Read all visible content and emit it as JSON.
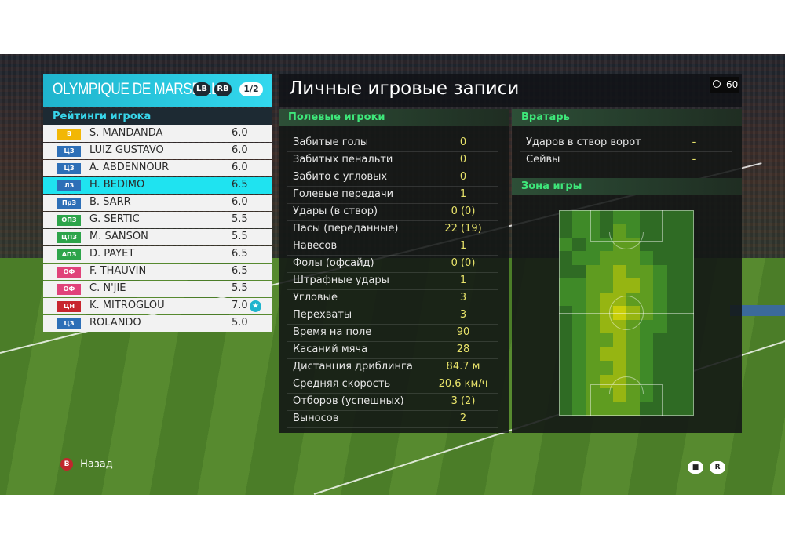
{
  "team": {
    "name": "OLYMPIQUE DE MARSEILLE",
    "lb": "LB",
    "rb": "RB",
    "page": "1/2"
  },
  "ratings_title": "Рейтинги игрока",
  "players": [
    {
      "pos": "В",
      "pos_color": "#f2b705",
      "name": "S. MANDANDA",
      "rating": "6.0"
    },
    {
      "pos": "ЦЗ",
      "pos_color": "#2d6fb7",
      "name": "LUIZ GUSTAVO",
      "rating": "6.0"
    },
    {
      "pos": "ЦЗ",
      "pos_color": "#2d6fb7",
      "name": "A. ABDENNOUR",
      "rating": "6.0"
    },
    {
      "pos": "ЛЗ",
      "pos_color": "#2d6fb7",
      "name": "H. BEDIMO",
      "rating": "6.5",
      "selected": true
    },
    {
      "pos": "ПрЗ",
      "pos_color": "#2d6fb7",
      "name": "B. SARR",
      "rating": "6.0"
    },
    {
      "pos": "ОПЗ",
      "pos_color": "#2da44a",
      "name": "G. SERTIC",
      "rating": "5.5"
    },
    {
      "pos": "ЦПЗ",
      "pos_color": "#2da44a",
      "name": "M. SANSON",
      "rating": "5.5"
    },
    {
      "pos": "АПЗ",
      "pos_color": "#2da44a",
      "name": "D. PAYET",
      "rating": "6.5"
    },
    {
      "pos": "ОФ",
      "pos_color": "#e0427a",
      "name": "F. THAUVIN",
      "rating": "6.5"
    },
    {
      "pos": "ОФ",
      "pos_color": "#e0427a",
      "name": "C. N'JIE",
      "rating": "5.5"
    },
    {
      "pos": "ЦН",
      "pos_color": "#c8252e",
      "name": "K. MITROGLOU",
      "rating": "7.0",
      "star": true
    },
    {
      "pos": "ЦЗ",
      "pos_color": "#2d6fb7",
      "name": "ROLANDO",
      "rating": "5.0"
    }
  ],
  "title": "Личные игровые записи",
  "timer": "60",
  "field_players": {
    "heading": "Полевые игроки",
    "stats": [
      {
        "label": "Забитые голы",
        "value": "0"
      },
      {
        "label": "Забитых пенальти",
        "value": "0"
      },
      {
        "label": "Забито с угловых",
        "value": "0"
      },
      {
        "label": "Голевые передачи",
        "value": "1"
      },
      {
        "label": "Удары (в створ)",
        "value": "0 (0)"
      },
      {
        "label": "Пасы (переданные)",
        "value": "22 (19)"
      },
      {
        "label": "Навесов",
        "value": "1"
      },
      {
        "label": "Фолы (офсайд)",
        "value": "0 (0)"
      },
      {
        "label": "Штрафные удары",
        "value": "1"
      },
      {
        "label": "Угловые",
        "value": "3"
      },
      {
        "label": "Перехваты",
        "value": "3"
      },
      {
        "label": "Время на поле",
        "value": "90"
      },
      {
        "label": "Касаний мяча",
        "value": "28"
      },
      {
        "label": "Дистанция дриблинга",
        "value": "84.7 м"
      },
      {
        "label": "Средняя скорость",
        "value": "20.6 км/ч"
      },
      {
        "label": "Отборов (успешных)",
        "value": "3 (2)"
      },
      {
        "label": "Выносов",
        "value": "2"
      }
    ]
  },
  "goalkeeper": {
    "heading": "Вратарь",
    "stats": [
      {
        "label": "Ударов в створ ворот",
        "value": "-"
      },
      {
        "label": "Сейвы",
        "value": "-"
      }
    ]
  },
  "zone": {
    "heading": "Зона игры",
    "heatmap": [
      [
        0,
        1,
        1,
        0,
        1,
        1,
        0,
        0,
        0,
        0
      ],
      [
        0,
        1,
        1,
        0,
        2,
        1,
        0,
        0,
        0,
        0
      ],
      [
        1,
        0,
        1,
        1,
        2,
        2,
        0,
        0,
        0,
        0
      ],
      [
        0,
        1,
        1,
        2,
        2,
        2,
        1,
        0,
        0,
        0
      ],
      [
        0,
        0,
        2,
        2,
        3,
        2,
        2,
        1,
        0,
        0
      ],
      [
        1,
        1,
        2,
        2,
        3,
        3,
        2,
        1,
        0,
        0
      ],
      [
        1,
        1,
        2,
        3,
        3,
        2,
        2,
        1,
        0,
        0
      ],
      [
        0,
        1,
        2,
        3,
        4,
        3,
        2,
        1,
        0,
        0
      ],
      [
        0,
        1,
        2,
        3,
        3,
        2,
        1,
        1,
        0,
        0
      ],
      [
        0,
        1,
        2,
        2,
        3,
        2,
        1,
        0,
        0,
        0
      ],
      [
        0,
        1,
        2,
        3,
        3,
        2,
        1,
        0,
        0,
        0
      ],
      [
        0,
        1,
        2,
        2,
        3,
        2,
        1,
        0,
        0,
        0
      ],
      [
        0,
        1,
        2,
        3,
        3,
        2,
        1,
        0,
        0,
        0
      ],
      [
        0,
        1,
        2,
        2,
        3,
        2,
        1,
        0,
        0,
        0
      ],
      [
        0,
        1,
        2,
        2,
        2,
        2,
        0,
        0,
        0,
        0
      ]
    ],
    "heat_colors": [
      "#2f6b24",
      "#3f8a28",
      "#5f9c20",
      "#96b512",
      "#c9cf0a"
    ]
  },
  "footer": {
    "back_button": "B",
    "back_label": "Назад",
    "icons": [
      "chat-icon",
      "rs-icon"
    ]
  }
}
